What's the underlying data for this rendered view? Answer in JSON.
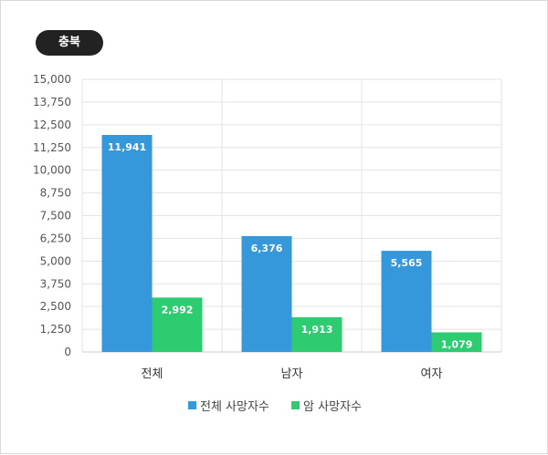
{
  "badge": "충북",
  "colors": {
    "total": "#3498db",
    "cancer": "#2ecc71"
  },
  "chart_data": {
    "type": "bar",
    "categories": [
      "전체",
      "남자",
      "여자"
    ],
    "series": [
      {
        "name": "전체 사망자수",
        "values": [
          11941,
          6376,
          5565
        ],
        "labels": [
          "11,941",
          "6,376",
          "5,565"
        ]
      },
      {
        "name": "암 사망자수",
        "values": [
          2992,
          1913,
          1079
        ],
        "labels": [
          "2,992",
          "1,913",
          "1,079"
        ]
      }
    ],
    "ylim": [
      0,
      15000
    ],
    "yticks": [
      0,
      1250,
      2500,
      3750,
      5000,
      6250,
      7500,
      8750,
      10000,
      11250,
      12500,
      13750,
      15000
    ],
    "ytick_labels": [
      "0",
      "1,250",
      "2,500",
      "3,750",
      "5,000",
      "6,250",
      "7,500",
      "8,750",
      "10,000",
      "11,250",
      "12,500",
      "13,750",
      "15,000"
    ],
    "grid": true,
    "legend": "bottom"
  }
}
